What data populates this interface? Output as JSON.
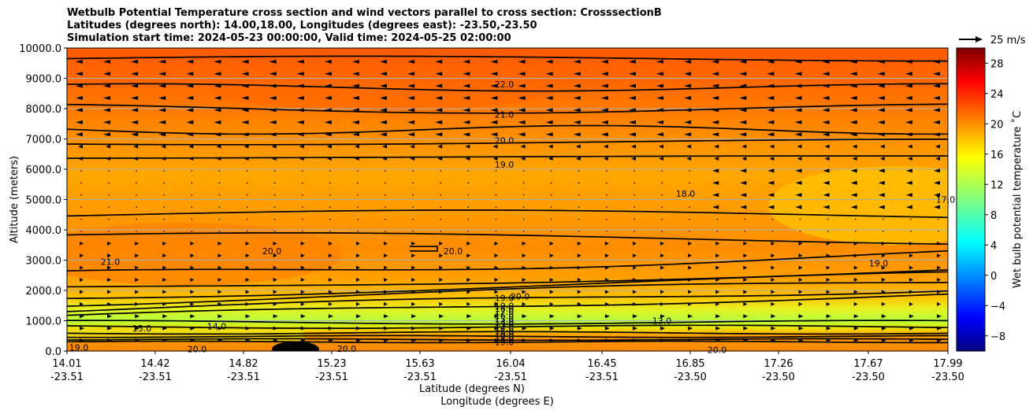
{
  "title_lines": [
    "Wetbulb Potential Temperature cross section and wind vectors parallel to cross section: CrosssectionB",
    "Latitudes (degrees north): 14.00,18.00, Longitudes (degrees east): -23.50,-23.50",
    "Simulation start time: 2024-05-23 00:00:00, Valid time: 2024-05-25 02:00:00"
  ],
  "quiver_key_label": "25 m/s",
  "chart_data": {
    "type": "heatmap",
    "title": "Wetbulb Potential Temperature cross section and wind vectors parallel to cross section: CrosssectionB",
    "xlabel_line1": "Latitude (degrees N)",
    "xlabel_line2": "Longitude (degrees E)",
    "ylabel": "Altitude (meters)",
    "colorbar_label": "Wet bulb potential temperature ˚C",
    "ylim": [
      0,
      10000
    ],
    "yticks": [
      "0.0",
      "1000.0",
      "2000.0",
      "3000.0",
      "4000.0",
      "5000.0",
      "6000.0",
      "7000.0",
      "8000.0",
      "9000.0",
      "10000.0"
    ],
    "xticks_lat": [
      "14.01",
      "14.42",
      "14.82",
      "15.23",
      "15.63",
      "16.04",
      "16.45",
      "16.85",
      "17.26",
      "17.67",
      "17.99"
    ],
    "xticks_lon": [
      "-23.51",
      "-23.51",
      "-23.51",
      "-23.51",
      "-23.51",
      "-23.51",
      "-23.51",
      "-23.50",
      "-23.50",
      "-23.50",
      "-23.50"
    ],
    "colorbar_ticks": [
      -8,
      -4,
      0,
      4,
      8,
      12,
      16,
      20,
      24,
      28
    ],
    "colorbar_range": [
      -10,
      30
    ],
    "colormap": "jet",
    "grid": "horizontal",
    "contour_labels": [
      "22.0",
      "21.0",
      "20.0",
      "19.0",
      "18.0",
      "19.0",
      "20.0",
      "21.0",
      "20.0",
      "19.0",
      "19.0",
      "18.0",
      "17.0",
      "16.0",
      "15.0",
      "14.0",
      "13.0",
      "13.0",
      "14.0",
      "15.0",
      "16.0",
      "17.0",
      "18.0",
      "19.0",
      "20.0",
      "20.0",
      "14.0",
      "20.0",
      "19.0",
      "17.0",
      "13.0",
      "20.0"
    ],
    "theta_profile": [
      {
        "z": 0,
        "theta": 20.5
      },
      {
        "z": 300,
        "theta": 19.0
      },
      {
        "z": 600,
        "theta": 13.0
      },
      {
        "z": 900,
        "theta": 14.5
      },
      {
        "z": 1300,
        "theta": 18.0
      },
      {
        "z": 2000,
        "theta": 19.5
      },
      {
        "z": 3000,
        "theta": 20.3
      },
      {
        "z": 4500,
        "theta": 19.0
      },
      {
        "z": 6000,
        "theta": 19.0
      },
      {
        "z": 7000,
        "theta": 20.2
      },
      {
        "z": 8500,
        "theta": 21.5
      },
      {
        "z": 9500,
        "theta": 22.5
      },
      {
        "z": 10000,
        "theta": 22.8
      }
    ]
  }
}
